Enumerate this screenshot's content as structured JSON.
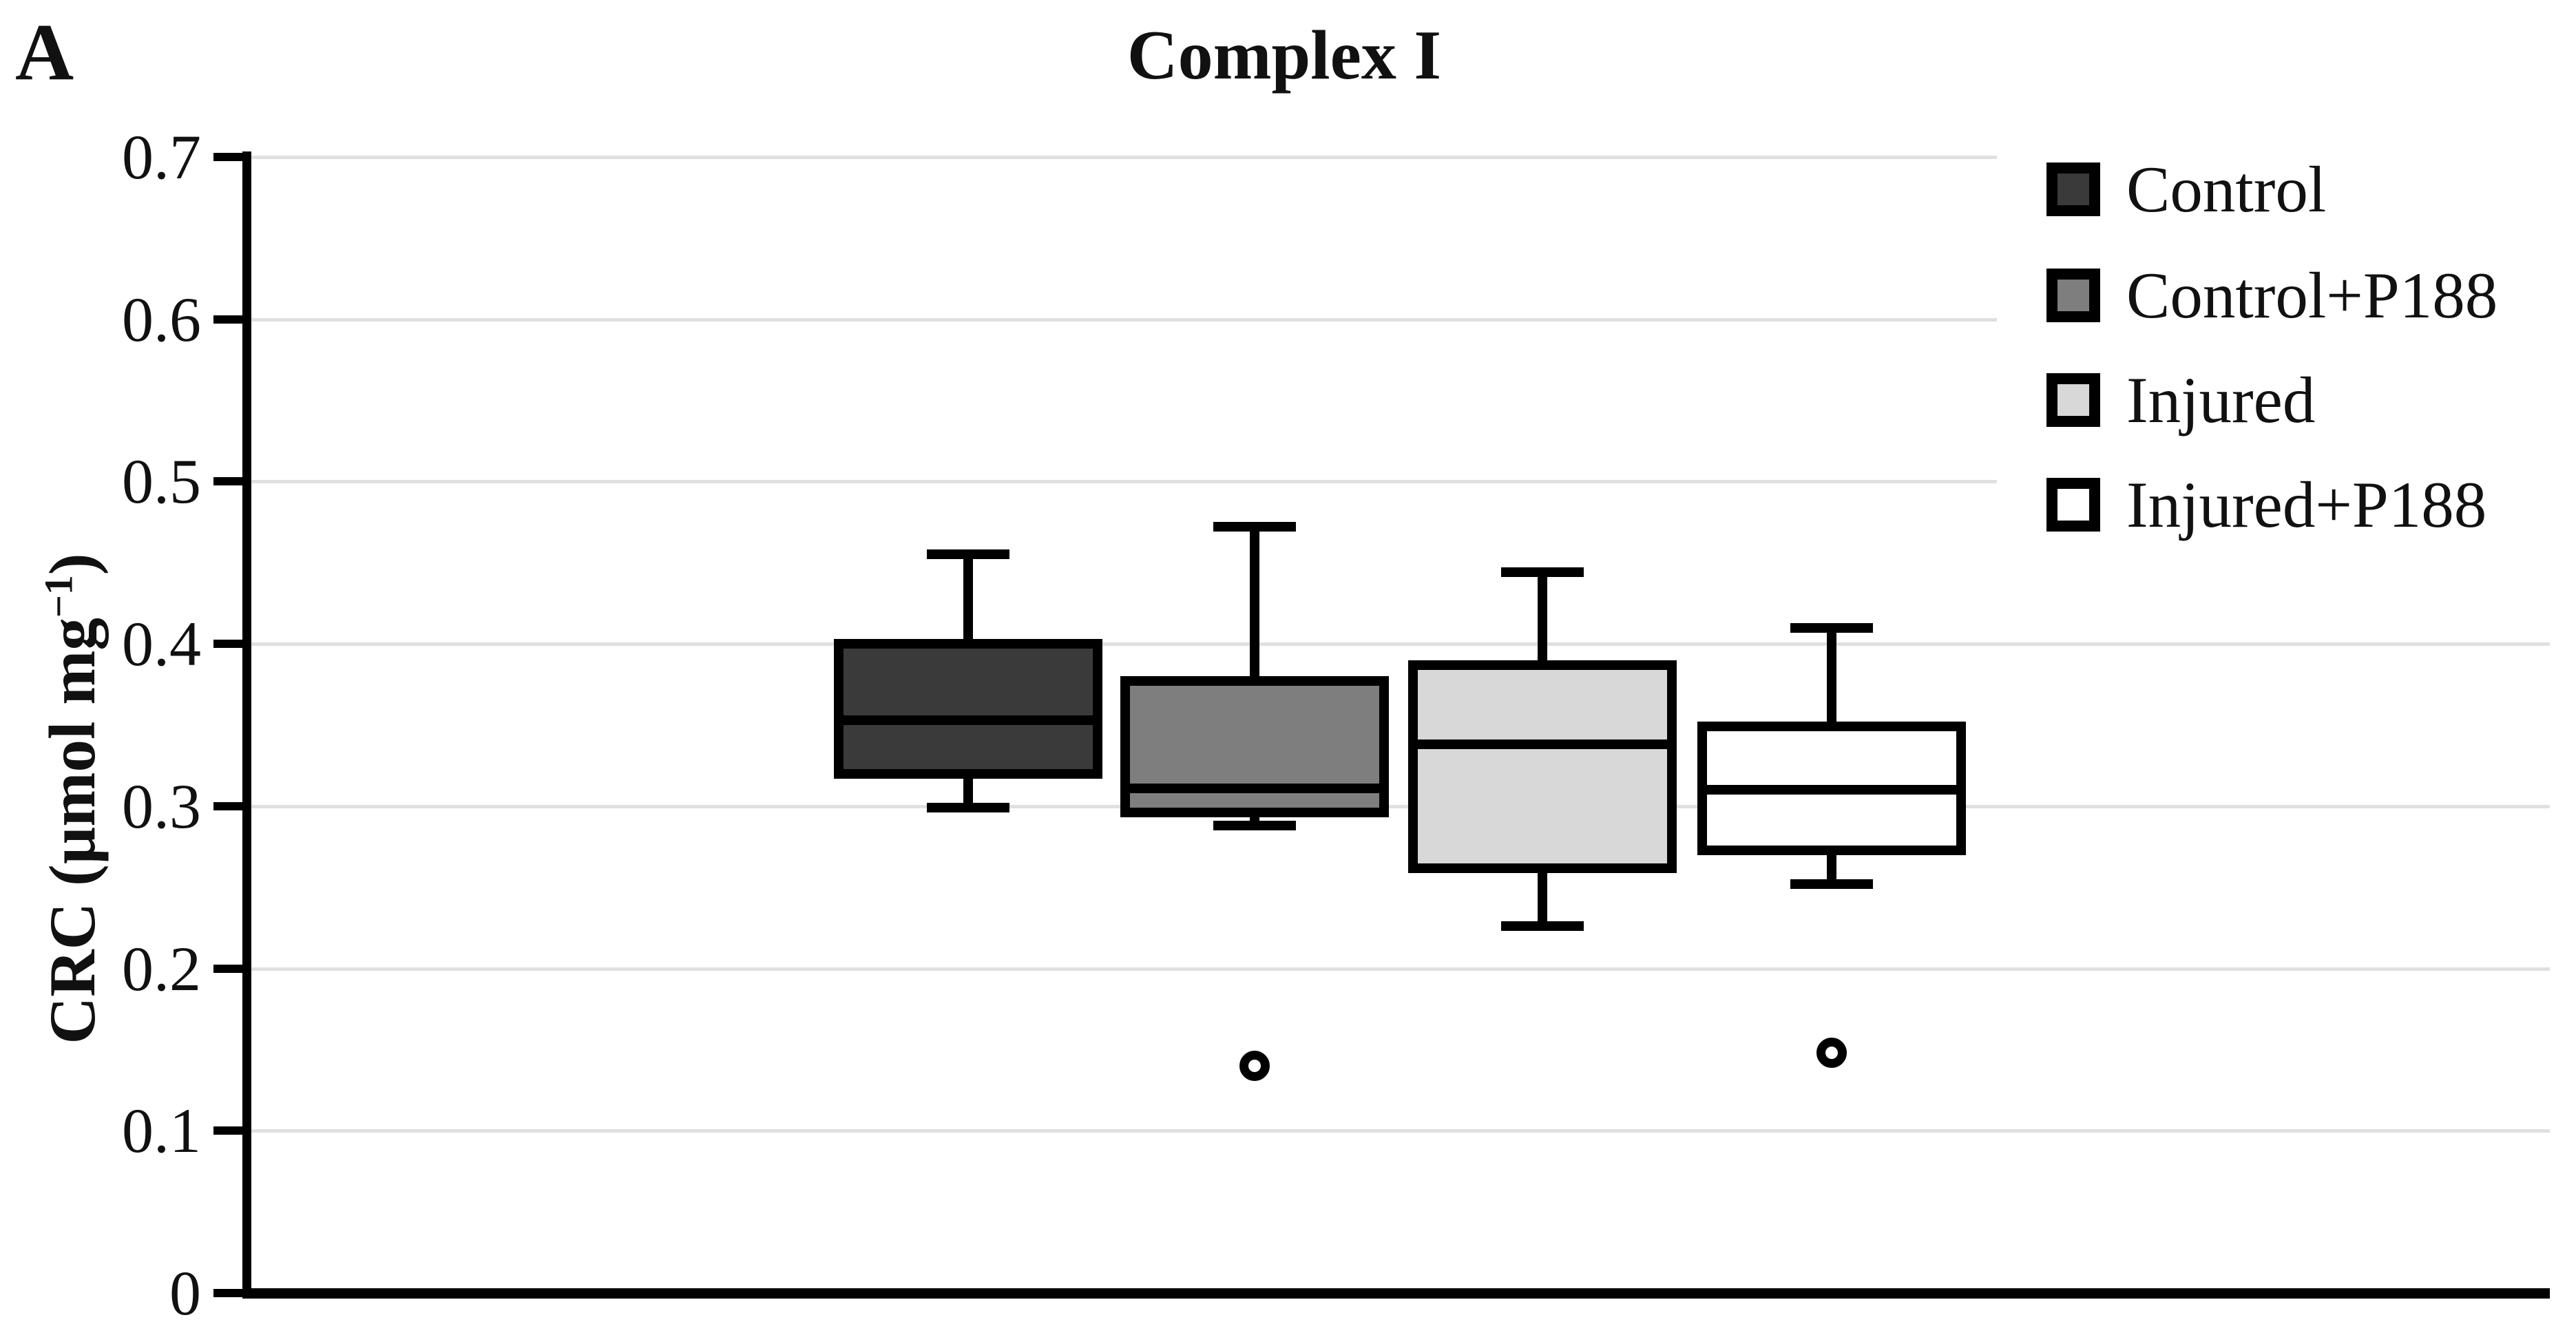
{
  "panel_label": "A",
  "chart_data": {
    "type": "boxplot",
    "title": "Complex I",
    "y_axis": {
      "label": "CRC (µmol mg−1)",
      "label_parts": {
        "main": "CRC (µmol mg",
        "sup": "−1",
        "close": ")"
      },
      "min": 0,
      "max": 0.7,
      "ticks": [
        {
          "value": 0.7,
          "label": "0.7"
        },
        {
          "value": 0.6,
          "label": "0.6"
        },
        {
          "value": 0.5,
          "label": "0.5"
        },
        {
          "value": 0.4,
          "label": "0.4"
        },
        {
          "value": 0.3,
          "label": "0.3"
        },
        {
          "value": 0.2,
          "label": "0.2"
        },
        {
          "value": 0.1,
          "label": "0.1"
        },
        {
          "value": 0,
          "label": "0"
        }
      ],
      "gridlines": true
    },
    "x_axis": {
      "label": "",
      "tick_labels": []
    },
    "legend": {
      "position": "top-right",
      "items": [
        {
          "label": "Control",
          "fill": "#3a3a3a"
        },
        {
          "label": "Control+P188",
          "fill": "#7e7e7e"
        },
        {
          "label": "Injured",
          "fill": "#d8d8d8"
        },
        {
          "label": "Injured+P188",
          "fill": "#ffffff"
        }
      ]
    },
    "series": [
      {
        "name": "Control",
        "fill": "#3a3a3a",
        "whisker_low": 0.299,
        "q1": 0.317,
        "median": 0.353,
        "q3": 0.403,
        "whisker_high": 0.455,
        "outliers": []
      },
      {
        "name": "Control+P188",
        "fill": "#7e7e7e",
        "whisker_low": 0.288,
        "q1": 0.293,
        "median": 0.311,
        "q3": 0.38,
        "whisker_high": 0.472,
        "outliers": [
          0.14
        ]
      },
      {
        "name": "Injured",
        "fill": "#d8d8d8",
        "whisker_low": 0.226,
        "q1": 0.259,
        "median": 0.338,
        "q3": 0.39,
        "whisker_high": 0.444,
        "outliers": []
      },
      {
        "name": "Injured+P188",
        "fill": "#ffffff",
        "whisker_low": 0.252,
        "q1": 0.27,
        "median": 0.31,
        "q3": 0.352,
        "whisker_high": 0.41,
        "outliers": [
          0.148
        ]
      }
    ],
    "colors": {
      "box_border": "#000000",
      "gridline": "#e0e0e0",
      "axis": "#000000",
      "background": "#ffffff"
    }
  }
}
